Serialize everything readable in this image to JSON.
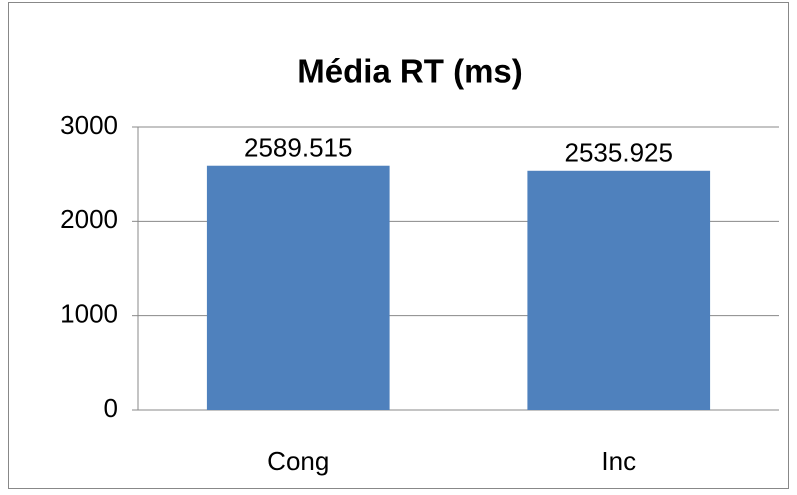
{
  "chart_data": {
    "type": "bar",
    "title": "Média RT (ms)",
    "categories": [
      "Cong",
      "Inc"
    ],
    "values": [
      2589.515,
      2535.925
    ],
    "color": "#4f81bd",
    "ylim": [
      0,
      3000
    ],
    "yticks": [
      0,
      1000,
      2000,
      3000
    ],
    "grid": true
  }
}
